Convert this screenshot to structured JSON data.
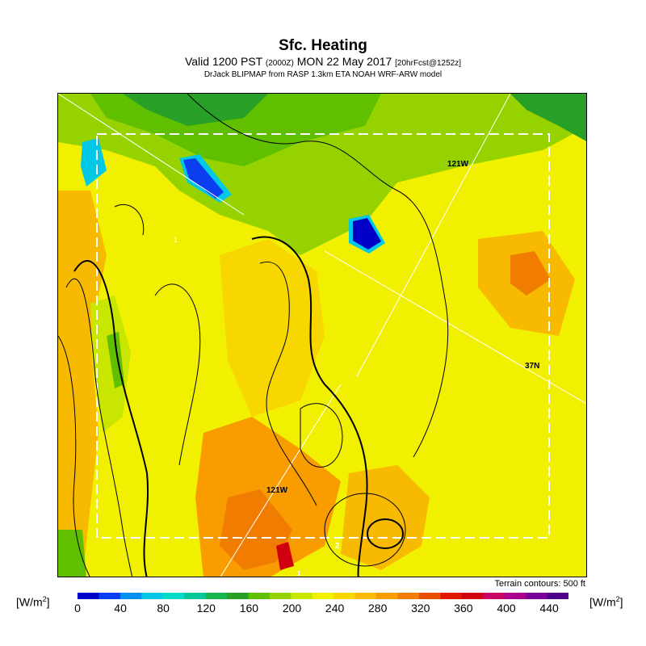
{
  "header": {
    "title": "Sfc. Heating",
    "valid_main": "Valid 1200 PST",
    "valid_zone": "(2000Z)",
    "valid_date": "MON 22 May 2017",
    "valid_fcst": "[20hrFcst@1252z]",
    "model_line": "DrJack BLIPMAP from RASP 1.3km ETA NOAH WRF-ARW model"
  },
  "map": {
    "grid_labels": {
      "lon_top": "121W",
      "lon_bottom": "121W",
      "lat": "37N"
    },
    "contour_labels": {
      "a": "1",
      "b": "2",
      "c": "1"
    },
    "terrain_note": "Terrain contours: 500 ft"
  },
  "colorbar": {
    "unit_left": "[W/m",
    "unit_sup": "2",
    "unit_close": "]",
    "ticks": [
      "0",
      "40",
      "80",
      "120",
      "160",
      "200",
      "240",
      "280",
      "320",
      "360",
      "400",
      "440"
    ],
    "colors": [
      "#0000c8",
      "#0a3ef0",
      "#0090f0",
      "#00c8e6",
      "#00dcc8",
      "#00c89a",
      "#16b44a",
      "#28a028",
      "#60c000",
      "#96d200",
      "#c8e600",
      "#f0f000",
      "#f8d600",
      "#f8ba00",
      "#f89c00",
      "#f07c00",
      "#e85000",
      "#e01800",
      "#d00010",
      "#c80064",
      "#a8008c",
      "#7a009a",
      "#4e008c"
    ]
  }
}
